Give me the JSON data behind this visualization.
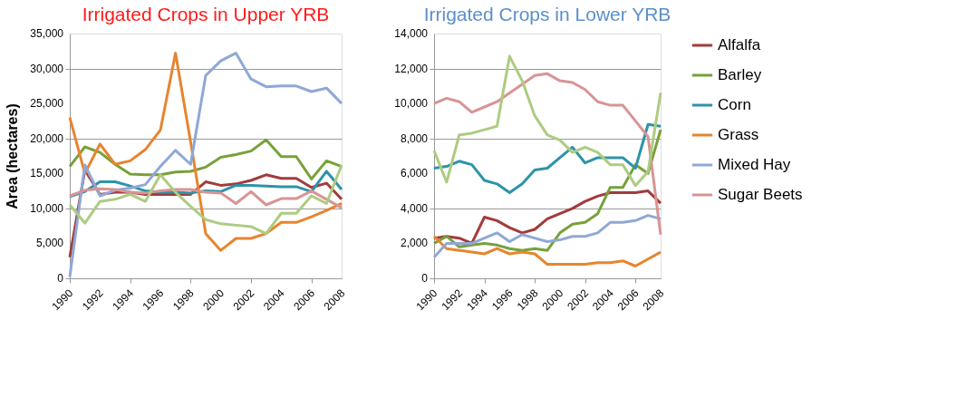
{
  "chart_data": [
    {
      "type": "line",
      "title": "Irrigated Crops in Upper YRB",
      "ylabel": "Area (hectares)",
      "x": [
        1990,
        1991,
        1992,
        1993,
        1994,
        1995,
        1996,
        1997,
        1998,
        1999,
        2000,
        2001,
        2002,
        2003,
        2004,
        2005,
        2006,
        2007,
        2008
      ],
      "xlim": [
        1990,
        2008
      ],
      "xticks": [
        1990,
        1992,
        1994,
        1996,
        1998,
        2000,
        2002,
        2004,
        2006,
        2008
      ],
      "ylim": [
        0,
        35000
      ],
      "yticks": [
        0,
        {
          "value": 5000,
          "label": "5,000"
        },
        {
          "value": 10000,
          "label": "10,000"
        },
        {
          "value": 15000,
          "label": "15,000"
        },
        {
          "value": 20000,
          "label": "20,000"
        },
        {
          "value": 25000,
          "label": "25,000"
        },
        {
          "value": 30000,
          "label": "30,000"
        },
        {
          "value": 35000,
          "label": "35,000"
        }
      ],
      "grid": "y",
      "legend": "right",
      "marker": "none",
      "series": [
        {
          "name": "Alfalfa",
          "color": "#a33b3b",
          "values": [
            3000,
            15500,
            12000,
            12300,
            12300,
            12000,
            12000,
            12000,
            12000,
            13800,
            13300,
            13500,
            14000,
            14800,
            14300,
            14300,
            13000,
            13600,
            11300
          ]
        },
        {
          "name": "Barley",
          "color": "#77a13a",
          "values": [
            16000,
            18800,
            18000,
            16300,
            14900,
            14800,
            14800,
            15200,
            15300,
            15900,
            17300,
            17700,
            18200,
            19800,
            17400,
            17400,
            14200,
            16800,
            16000
          ]
        },
        {
          "name": "Corn",
          "color": "#2e93a8",
          "values": [
            11700,
            12400,
            13800,
            13800,
            13200,
            12500,
            12300,
            12300,
            12200,
            12500,
            12400,
            13300,
            13300,
            13200,
            13100,
            13100,
            12400,
            15300,
            12700
          ]
        },
        {
          "name": "Grass",
          "color": "#e6852f",
          "values": [
            23000,
            15000,
            19200,
            16300,
            16800,
            18400,
            21200,
            32200,
            19500,
            6400,
            4000,
            5700,
            5700,
            6400,
            8000,
            8000,
            8800,
            9700,
            10700
          ]
        },
        {
          "name": "Mixed Hay",
          "color": "#8fa8d6",
          "values": [
            200,
            16200,
            11800,
            12600,
            12900,
            13400,
            16000,
            18300,
            16300,
            29000,
            31100,
            32200,
            28500,
            27400,
            27500,
            27500,
            26700,
            27200,
            25000
          ]
        },
        {
          "name": "Sugar Beets",
          "color": "#d89494",
          "values": [
            11800,
            12600,
            12800,
            12700,
            12300,
            12200,
            12500,
            12700,
            12700,
            12300,
            12200,
            10700,
            12400,
            10500,
            11400,
            11400,
            12500,
            11300,
            10100
          ]
        },
        {
          "color": "#aecb82",
          "values": [
            10500,
            7900,
            11000,
            11300,
            12000,
            11000,
            14800,
            12300,
            10300,
            8400,
            7800,
            7600,
            7400,
            6400,
            9300,
            9300,
            11800,
            10700,
            16200
          ]
        }
      ]
    },
    {
      "type": "line",
      "title": "Irrigated Crops in Lower YRB",
      "x": [
        1990,
        1991,
        1992,
        1993,
        1994,
        1995,
        1996,
        1997,
        1998,
        1999,
        2000,
        2001,
        2002,
        2003,
        2004,
        2005,
        2006,
        2007,
        2008
      ],
      "xlim": [
        1990,
        2008
      ],
      "xticks": [
        1990,
        1992,
        1994,
        1996,
        1998,
        2000,
        2002,
        2004,
        2006,
        2008
      ],
      "ylim": [
        0,
        14000
      ],
      "yticks": [
        0,
        {
          "value": 2000,
          "label": "2,000"
        },
        {
          "value": 4000,
          "label": "4,000"
        },
        {
          "value": 6000,
          "label": "6,000"
        },
        {
          "value": 8000,
          "label": "8,000"
        },
        {
          "value": 10000,
          "label": "10,000"
        },
        {
          "value": 12000,
          "label": "12,000"
        },
        {
          "value": 14000,
          "label": "14,000"
        }
      ],
      "grid": "y",
      "legend": "right",
      "marker": "none",
      "series": [
        {
          "name": "Alfalfa",
          "color": "#a33b3b",
          "values": [
            2300,
            2400,
            2300,
            2000,
            3500,
            3300,
            2900,
            2600,
            2800,
            3400,
            3700,
            4000,
            4400,
            4700,
            4900,
            4900,
            4900,
            5000,
            4300
          ]
        },
        {
          "name": "Barley",
          "color": "#77a13a",
          "values": [
            2000,
            2400,
            1800,
            1900,
            2000,
            1900,
            1700,
            1600,
            1700,
            1600,
            2600,
            3100,
            3200,
            3700,
            5200,
            5200,
            6500,
            6000,
            8500
          ]
        },
        {
          "name": "Corn",
          "color": "#2e93a8",
          "values": [
            6300,
            6400,
            6700,
            6500,
            5600,
            5400,
            4900,
            5400,
            6200,
            6300,
            6900,
            7500,
            6600,
            6900,
            6900,
            6900,
            6300,
            8800,
            8700
          ]
        },
        {
          "name": "Grass",
          "color": "#e6852f",
          "values": [
            2400,
            1700,
            1600,
            1500,
            1400,
            1700,
            1400,
            1500,
            1400,
            800,
            800,
            800,
            800,
            900,
            900,
            1000,
            700,
            1100,
            1500
          ]
        },
        {
          "name": "Mixed Hay",
          "color": "#8fa8d6",
          "values": [
            1200,
            2000,
            2000,
            2000,
            2300,
            2600,
            2100,
            2500,
            2300,
            2100,
            2200,
            2400,
            2400,
            2600,
            3200,
            3200,
            3300,
            3600,
            3400
          ]
        },
        {
          "name": "Sugar Beets",
          "color": "#d89494",
          "values": [
            10000,
            10300,
            10100,
            9500,
            9800,
            10100,
            10600,
            11100,
            11600,
            11700,
            11300,
            11200,
            10800,
            10100,
            9900,
            9900,
            9000,
            8100,
            2500
          ]
        },
        {
          "color": "#aecb82",
          "values": [
            7300,
            5500,
            8200,
            8300,
            8500,
            8700,
            12700,
            11300,
            9300,
            8200,
            7900,
            7200,
            7500,
            7200,
            6500,
            6500,
            5300,
            6100,
            10600
          ]
        }
      ]
    }
  ]
}
